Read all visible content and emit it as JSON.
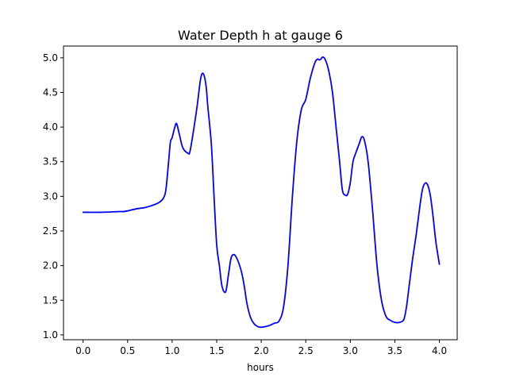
{
  "chart_data": {
    "type": "line",
    "title": "Water Depth h at gauge 6",
    "xlabel": "hours",
    "ylabel": "",
    "xlim": [
      -0.22,
      4.2
    ],
    "ylim": [
      0.93,
      5.17
    ],
    "xticks": [
      0.0,
      0.5,
      1.0,
      1.5,
      2.0,
      2.5,
      3.0,
      3.5,
      4.0
    ],
    "xtick_labels": [
      "0.0",
      "0.5",
      "1.0",
      "1.5",
      "2.0",
      "2.5",
      "3.0",
      "3.5",
      "4.0"
    ],
    "yticks": [
      1.0,
      1.5,
      2.0,
      2.5,
      3.0,
      3.5,
      4.0,
      4.5,
      5.0
    ],
    "ytick_labels": [
      "1.0",
      "1.5",
      "2.0",
      "2.5",
      "3.0",
      "3.5",
      "4.0",
      "4.5",
      "5.0"
    ],
    "grid": false,
    "series": [
      {
        "color": "#0000ff",
        "x": [
          0.0,
          0.2,
          0.4,
          0.45,
          0.5,
          0.6,
          0.7,
          0.8,
          0.85,
          0.9,
          0.93,
          0.96,
          0.98,
          1.0,
          1.03,
          1.05,
          1.08,
          1.12,
          1.18,
          1.2,
          1.24,
          1.28,
          1.32,
          1.35,
          1.38,
          1.4,
          1.44,
          1.47,
          1.5,
          1.53,
          1.56,
          1.6,
          1.63,
          1.66,
          1.69,
          1.72,
          1.75,
          1.78,
          1.81,
          1.84,
          1.88,
          1.92,
          1.96,
          2.0,
          2.05,
          2.1,
          2.15,
          2.2,
          2.25,
          2.3,
          2.35,
          2.4,
          2.45,
          2.5,
          2.55,
          2.6,
          2.63,
          2.66,
          2.69,
          2.72,
          2.76,
          2.8,
          2.84,
          2.88,
          2.91,
          2.94,
          2.97,
          3.0,
          3.03,
          3.06,
          3.1,
          3.13,
          3.16,
          3.2,
          3.25,
          3.3,
          3.35,
          3.4,
          3.45,
          3.5,
          3.55,
          3.6,
          3.63,
          3.66,
          3.7,
          3.74,
          3.78,
          3.81,
          3.84,
          3.87,
          3.9,
          3.93,
          3.96,
          4.0
        ],
        "y": [
          2.77,
          2.77,
          2.78,
          2.78,
          2.79,
          2.82,
          2.84,
          2.88,
          2.91,
          2.97,
          3.1,
          3.5,
          3.78,
          3.85,
          4.0,
          4.05,
          3.9,
          3.7,
          3.62,
          3.65,
          3.95,
          4.3,
          4.7,
          4.77,
          4.6,
          4.3,
          3.75,
          3.0,
          2.3,
          2.0,
          1.7,
          1.62,
          1.85,
          2.1,
          2.16,
          2.12,
          2.03,
          1.9,
          1.7,
          1.45,
          1.25,
          1.16,
          1.12,
          1.11,
          1.12,
          1.14,
          1.17,
          1.2,
          1.4,
          2.0,
          3.0,
          3.8,
          4.25,
          4.4,
          4.7,
          4.92,
          4.98,
          4.97,
          5.01,
          4.97,
          4.8,
          4.5,
          4.0,
          3.5,
          3.1,
          3.02,
          3.03,
          3.2,
          3.5,
          3.62,
          3.76,
          3.86,
          3.8,
          3.5,
          2.8,
          2.0,
          1.5,
          1.27,
          1.21,
          1.18,
          1.18,
          1.22,
          1.4,
          1.7,
          2.1,
          2.45,
          2.85,
          3.1,
          3.19,
          3.16,
          3.0,
          2.7,
          2.35,
          2.02
        ]
      }
    ]
  }
}
